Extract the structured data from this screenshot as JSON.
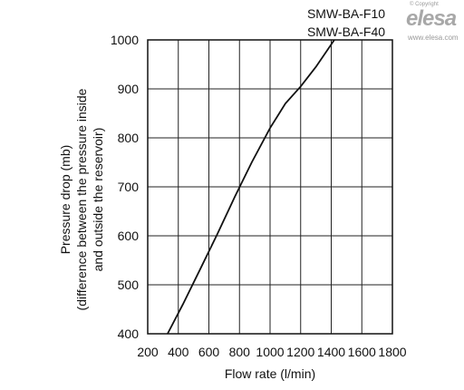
{
  "logo": {
    "copyright": "© Copyright",
    "brand": "elesa",
    "url": "www.elesa.com"
  },
  "chart_data": {
    "type": "line",
    "title": "",
    "legend": [
      "SMW-BA-F10",
      "SMW-BA-F40"
    ],
    "xlabel": "Flow rate (l/min)",
    "ylabel": [
      "Pressure drop (mb)",
      "(difference between the pressure inside",
      "and outside the reservoir)"
    ],
    "xlim": [
      200,
      1800
    ],
    "ylim": [
      400,
      1000
    ],
    "xticks": [
      200,
      400,
      600,
      800,
      1000,
      1200,
      1400,
      1600,
      1800
    ],
    "yticks": [
      400,
      500,
      600,
      700,
      800,
      900,
      1000
    ],
    "grid": true,
    "series": [
      {
        "x": [
          330,
          430,
          540,
          650,
          770,
          880,
          1000,
          1100,
          1200,
          1300,
          1420
        ],
        "y": [
          400,
          460,
          530,
          600,
          680,
          750,
          820,
          870,
          905,
          945,
          1000
        ]
      }
    ]
  }
}
